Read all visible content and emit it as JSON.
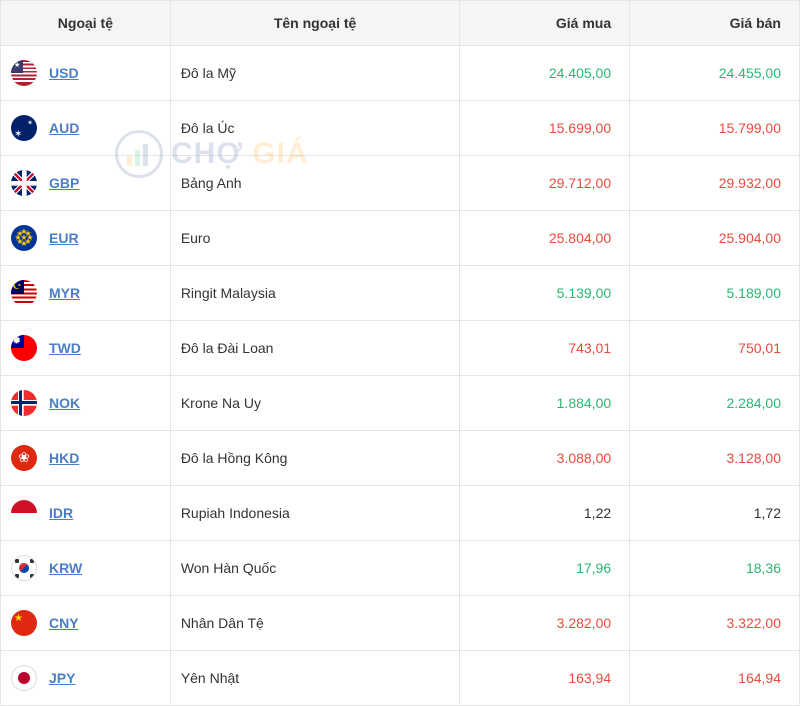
{
  "columns": {
    "code": "Ngoại tệ",
    "name": "Tên ngoại tệ",
    "buy": "Giá mua",
    "sell": "Giá bán"
  },
  "colors": {
    "up": "#2bb673",
    "down": "#e74c3c",
    "neutral": "#333333",
    "code_link": "#4a7ec7",
    "header_bg": "#f5f5f5",
    "border": "#e5e5e5"
  },
  "watermark": {
    "text_a": "CHỢ",
    "text_b": " GIÁ"
  },
  "rows": [
    {
      "code": "USD",
      "name": "Đô la Mỹ",
      "buy": "24.405,00",
      "sell": "24.455,00",
      "buy_dir": "up",
      "sell_dir": "up",
      "flag": "usd"
    },
    {
      "code": "AUD",
      "name": "Đô la Úc",
      "buy": "15.699,00",
      "sell": "15.799,00",
      "buy_dir": "down",
      "sell_dir": "down",
      "flag": "aud"
    },
    {
      "code": "GBP",
      "name": "Bảng Anh",
      "buy": "29.712,00",
      "sell": "29.932,00",
      "buy_dir": "down",
      "sell_dir": "down",
      "flag": "gbp"
    },
    {
      "code": "EUR",
      "name": "Euro",
      "buy": "25.804,00",
      "sell": "25.904,00",
      "buy_dir": "down",
      "sell_dir": "down",
      "flag": "eur"
    },
    {
      "code": "MYR",
      "name": "Ringit Malaysia",
      "buy": "5.139,00",
      "sell": "5.189,00",
      "buy_dir": "up",
      "sell_dir": "up",
      "flag": "myr"
    },
    {
      "code": "TWD",
      "name": "Đô la Đài Loan",
      "buy": "743,01",
      "sell": "750,01",
      "buy_dir": "down",
      "sell_dir": "down",
      "flag": "twd"
    },
    {
      "code": "NOK",
      "name": "Krone Na Uy",
      "buy": "1.884,00",
      "sell": "2.284,00",
      "buy_dir": "up",
      "sell_dir": "up",
      "flag": "nok"
    },
    {
      "code": "HKD",
      "name": "Đô la Hồng Kông",
      "buy": "3.088,00",
      "sell": "3.128,00",
      "buy_dir": "down",
      "sell_dir": "down",
      "flag": "hkd"
    },
    {
      "code": "IDR",
      "name": "Rupiah Indonesia",
      "buy": "1,22",
      "sell": "1,72",
      "buy_dir": "none",
      "sell_dir": "none",
      "flag": "idr"
    },
    {
      "code": "KRW",
      "name": "Won Hàn Quốc",
      "buy": "17,96",
      "sell": "18,36",
      "buy_dir": "up",
      "sell_dir": "up",
      "flag": "krw"
    },
    {
      "code": "CNY",
      "name": "Nhân Dân Tệ",
      "buy": "3.282,00",
      "sell": "3.322,00",
      "buy_dir": "down",
      "sell_dir": "down",
      "flag": "cny"
    },
    {
      "code": "JPY",
      "name": "Yên Nhật",
      "buy": "163,94",
      "sell": "164,94",
      "buy_dir": "down",
      "sell_dir": "down",
      "flag": "jpy"
    }
  ]
}
